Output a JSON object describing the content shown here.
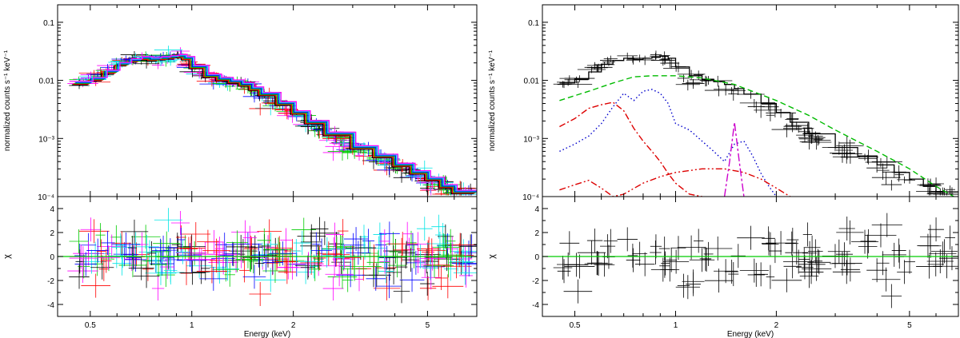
{
  "chart_data": [
    {
      "type": "scatter",
      "panel": "left",
      "top_ylabel": "normalized counts s⁻¹ keV⁻¹",
      "bottom_ylabel": "χ",
      "xlabel": "Energy (keV)",
      "x_scale": "log",
      "top_y_scale": "log",
      "xlim": [
        0.4,
        7.0
      ],
      "top_ylim": [
        0.0001,
        0.2
      ],
      "bottom_ylim": [
        -5,
        5
      ],
      "x_ticks": [
        "0.5",
        "1",
        "2",
        "5"
      ],
      "top_y_ticks": [
        "10⁻⁴",
        "10⁻³",
        "0.01",
        "0.1"
      ],
      "bottom_y_ticks": [
        "-4",
        "-2",
        "0",
        "2",
        "4"
      ],
      "series_colors": [
        "#000000",
        "#ff0000",
        "#00cc00",
        "#0000ff",
        "#00e5e5",
        "#ff00ff"
      ],
      "model_x": [
        0.45,
        0.5,
        0.55,
        0.6,
        0.65,
        0.7,
        0.75,
        0.8,
        0.85,
        0.9,
        0.95,
        1.0,
        1.1,
        1.2,
        1.3,
        1.4,
        1.5,
        1.6,
        1.8,
        2.0,
        2.2,
        2.5,
        3.0,
        3.5,
        4.0,
        4.5,
        5.0,
        5.5,
        6.0,
        7.0
      ],
      "model_y": [
        0.009,
        0.0105,
        0.014,
        0.019,
        0.022,
        0.024,
        0.023,
        0.024,
        0.025,
        0.026,
        0.024,
        0.017,
        0.012,
        0.0105,
        0.0095,
        0.0085,
        0.0072,
        0.0058,
        0.004,
        0.0028,
        0.0019,
        0.0012,
        0.0007,
        0.0005,
        0.00035,
        0.00026,
        0.0002,
        0.00015,
        0.00012,
        0.00011
      ],
      "n_points": 320,
      "chi_zero_line_color": "#00cc00"
    },
    {
      "type": "scatter",
      "panel": "right",
      "top_ylabel": "normalized counts s⁻¹ keV⁻¹",
      "bottom_ylabel": "χ",
      "xlabel": "Energy (keV)",
      "x_scale": "log",
      "top_y_scale": "log",
      "xlim": [
        0.4,
        7.0
      ],
      "top_ylim": [
        0.0001,
        0.2
      ],
      "bottom_ylim": [
        -5,
        5
      ],
      "x_ticks": [
        "0.5",
        "1",
        "2",
        "5"
      ],
      "top_y_ticks": [
        "10⁻⁴",
        "10⁻³",
        "0.01",
        "0.1"
      ],
      "bottom_y_ticks": [
        "-4",
        "-2",
        "0",
        "2",
        "4"
      ],
      "model_x": [
        0.45,
        0.5,
        0.55,
        0.6,
        0.65,
        0.7,
        0.75,
        0.8,
        0.85,
        0.9,
        0.95,
        1.0,
        1.1,
        1.2,
        1.3,
        1.4,
        1.5,
        1.6,
        1.8,
        2.0,
        2.2,
        2.5,
        3.0,
        3.5,
        4.0,
        4.5,
        5.0,
        5.5,
        6.0,
        7.0
      ],
      "model_y": [
        0.009,
        0.0105,
        0.014,
        0.019,
        0.022,
        0.024,
        0.023,
        0.024,
        0.025,
        0.026,
        0.024,
        0.017,
        0.012,
        0.0105,
        0.0095,
        0.0085,
        0.0072,
        0.0058,
        0.004,
        0.0028,
        0.0019,
        0.0012,
        0.0007,
        0.0005,
        0.00035,
        0.00026,
        0.0002,
        0.00015,
        0.00012,
        0.00011
      ],
      "components": [
        {
          "color": "#00bb00",
          "style": "dashed",
          "x": [
            0.45,
            0.55,
            0.65,
            0.75,
            0.85,
            1.0,
            1.2,
            1.5,
            2.0,
            2.5,
            3.0,
            4.0,
            5.0,
            6.0,
            7.0
          ],
          "y": [
            0.0045,
            0.0065,
            0.009,
            0.0115,
            0.012,
            0.012,
            0.011,
            0.0085,
            0.0045,
            0.0025,
            0.0014,
            0.0006,
            0.0003,
            0.00015,
            9e-05
          ]
        },
        {
          "color": "#0000cc",
          "style": "dotted",
          "x": [
            0.45,
            0.5,
            0.55,
            0.6,
            0.65,
            0.7,
            0.75,
            0.8,
            0.85,
            0.9,
            0.95,
            1.0,
            1.1,
            1.2,
            1.3,
            1.4,
            1.5,
            1.6,
            1.7,
            1.8,
            1.9,
            2.0
          ],
          "y": [
            0.0006,
            0.0008,
            0.0011,
            0.0018,
            0.0035,
            0.006,
            0.0045,
            0.0065,
            0.007,
            0.006,
            0.004,
            0.0018,
            0.0014,
            0.0009,
            0.0006,
            0.0004,
            0.0008,
            0.0009,
            0.0005,
            0.00025,
            0.00015,
            0.0001
          ]
        },
        {
          "color": "#dd0000",
          "style": "dashdot",
          "x": [
            0.45,
            0.5,
            0.55,
            0.6,
            0.65,
            0.7,
            0.75,
            0.8,
            0.85,
            0.9,
            0.95,
            1.0,
            1.1,
            1.2
          ],
          "y": [
            0.0016,
            0.0022,
            0.0033,
            0.0038,
            0.0042,
            0.003,
            0.0015,
            0.0009,
            0.0006,
            0.0004,
            0.00025,
            0.00017,
            0.00011,
            0.0001
          ]
        },
        {
          "color": "#dd0000",
          "style": "dashdotdot",
          "x": [
            0.45,
            0.5,
            0.55,
            0.6,
            0.65,
            0.7,
            0.8,
            0.9,
            1.0,
            1.2,
            1.4,
            1.6,
            1.8,
            2.0,
            2.2
          ],
          "y": [
            0.00013,
            0.00016,
            0.00019,
            0.00014,
            0.0001,
            0.00011,
            0.00017,
            0.00022,
            0.00026,
            0.0003,
            0.0003,
            0.00026,
            0.0002,
            0.00014,
            0.0001
          ]
        },
        {
          "color": "#cc00cc",
          "style": "longdash",
          "x": [
            1.4,
            1.45,
            1.5,
            1.55,
            1.6
          ],
          "y": [
            0.0001,
            0.0004,
            0.0019,
            0.0004,
            0.0001
          ]
        }
      ],
      "n_points": 110,
      "chi_zero_line_color": "#00cc00"
    }
  ]
}
